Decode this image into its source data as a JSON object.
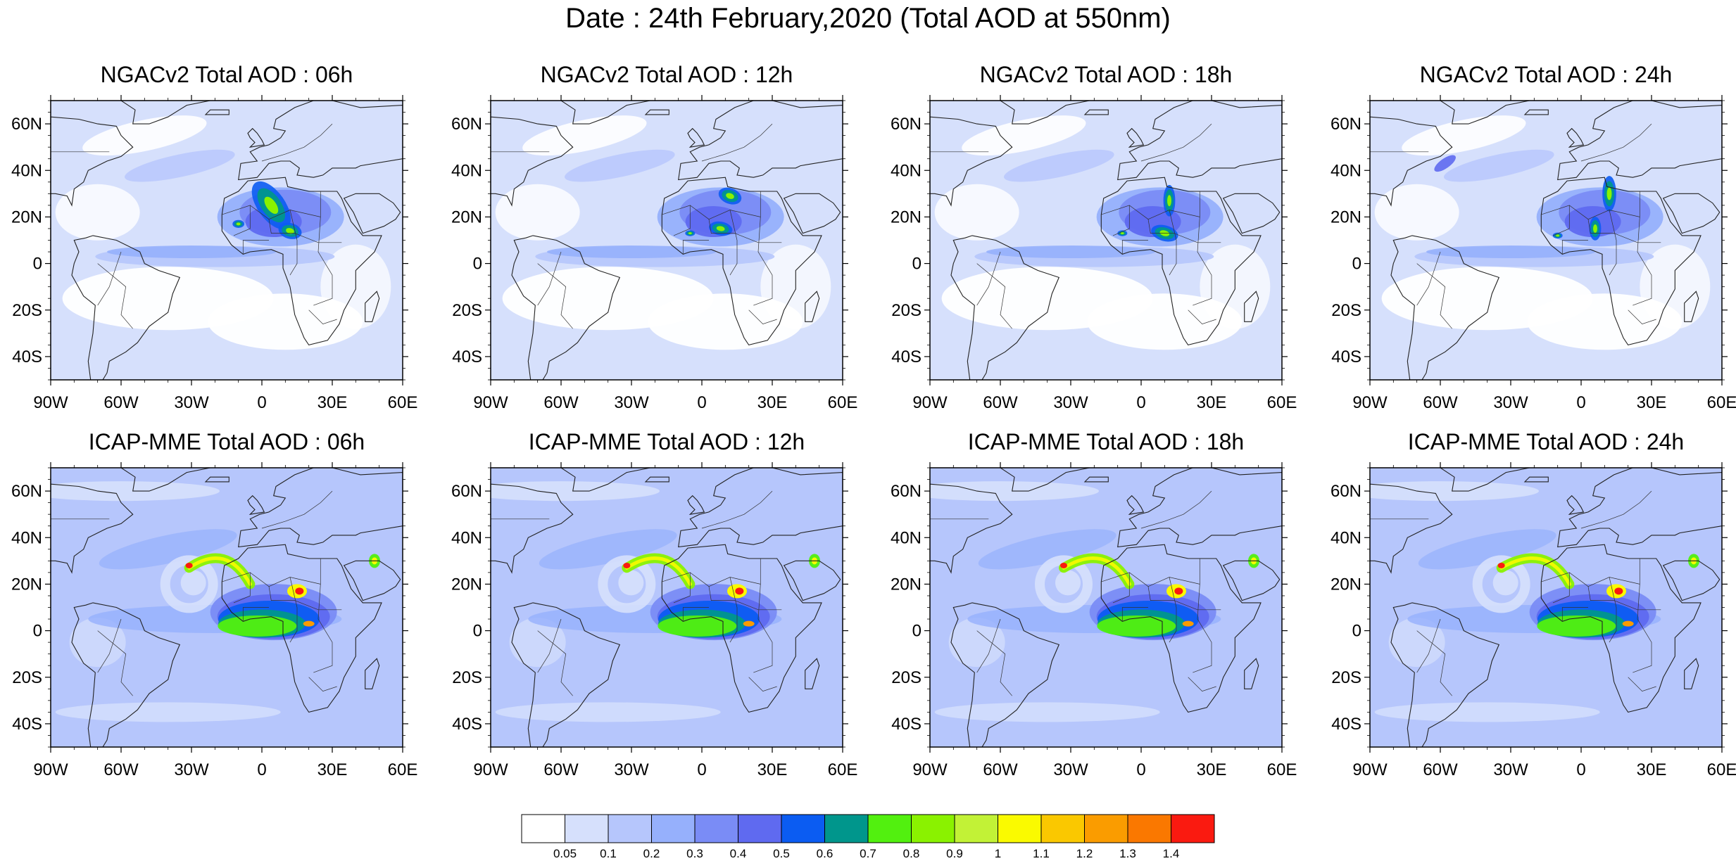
{
  "title": "Date : 24th February,2020 (Total AOD at 550nm)",
  "panels": [
    {
      "model": "NGACv2",
      "title": "NGACv2 Total AOD : 06h",
      "hour": "06h"
    },
    {
      "model": "NGACv2",
      "title": "NGACv2 Total AOD : 12h",
      "hour": "12h"
    },
    {
      "model": "NGACv2",
      "title": "NGACv2 Total AOD : 18h",
      "hour": "18h"
    },
    {
      "model": "NGACv2",
      "title": "NGACv2 Total AOD : 24h",
      "hour": "24h"
    },
    {
      "model": "ICAP-MME",
      "title": "ICAP-MME Total AOD : 06h",
      "hour": "06h"
    },
    {
      "model": "ICAP-MME",
      "title": "ICAP-MME Total AOD : 12h",
      "hour": "12h"
    },
    {
      "model": "ICAP-MME",
      "title": "ICAP-MME Total AOD : 18h",
      "hour": "18h"
    },
    {
      "model": "ICAP-MME",
      "title": "ICAP-MME Total AOD : 24h",
      "hour": "24h"
    }
  ],
  "axes": {
    "lat_labels": [
      "60N",
      "40N",
      "20N",
      "0",
      "20S",
      "40S"
    ],
    "lat_values": [
      60,
      40,
      20,
      0,
      -20,
      -40
    ],
    "lon_labels": [
      "90W",
      "60W",
      "30W",
      "0",
      "30E",
      "60E"
    ],
    "lon_values": [
      -90,
      -60,
      -30,
      0,
      30,
      60
    ],
    "lon_range": [
      -90,
      60
    ],
    "lat_range": [
      -50,
      70
    ]
  },
  "colorbar": {
    "colors": [
      "#ffffff",
      "#d6e0fc",
      "#b6c6fc",
      "#96b0fc",
      "#7a8cf6",
      "#5f6af0",
      "#0b5cf2",
      "#00968c",
      "#52f00f",
      "#8af200",
      "#c2f236",
      "#fafa00",
      "#fac800",
      "#fa9c00",
      "#fa7800",
      "#fa1a10"
    ],
    "labels": [
      "0.05",
      "0.1",
      "0.2",
      "0.3",
      "0.4",
      "0.5",
      "0.6",
      "0.7",
      "0.8",
      "0.9",
      "1",
      "1.1",
      "1.2",
      "1.3",
      "1.4"
    ]
  }
}
